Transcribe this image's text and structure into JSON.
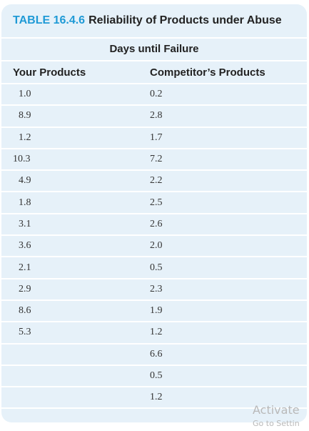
{
  "table": {
    "number": "TABLE 16.4.6",
    "title": "Reliability of Products under Abuse",
    "span_header": "Days until Failure",
    "columns": [
      "Your Products",
      "Competitor’s Products"
    ],
    "rows": [
      [
        "1.0",
        "0.2"
      ],
      [
        "8.9",
        "2.8"
      ],
      [
        "1.2",
        "1.7"
      ],
      [
        "10.3",
        "7.2"
      ],
      [
        "4.9",
        "2.2"
      ],
      [
        "1.8",
        "2.5"
      ],
      [
        "3.1",
        "2.6"
      ],
      [
        "3.6",
        "2.0"
      ],
      [
        "2.1",
        "0.5"
      ],
      [
        "2.9",
        "2.3"
      ],
      [
        "8.6",
        "1.9"
      ],
      [
        "5.3",
        "1.2"
      ],
      [
        "",
        "6.6"
      ],
      [
        "",
        "0.5"
      ],
      [
        "",
        "1.2"
      ]
    ]
  },
  "watermark": {
    "line1": "Activate",
    "line2": "Go to Settin"
  }
}
